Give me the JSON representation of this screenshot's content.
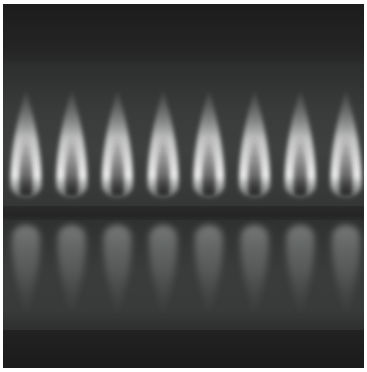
{
  "scene": {
    "subject": "gas-burner-flames",
    "flame_count": 8,
    "colors": {
      "background": "#1f1e1f",
      "glow": "#3e4040",
      "flame_core": "#f4f4f4",
      "reflection": "#9a9c9c"
    }
  }
}
